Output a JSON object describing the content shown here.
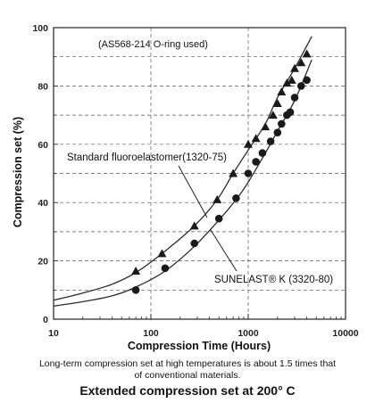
{
  "chart_data": {
    "type": "scatter",
    "title": "Extended compression set at 200° C",
    "note": "(AS568-214 O-ring used)",
    "xlabel": "Compression Time (Hours)",
    "ylabel": "Compression set (%)",
    "xscale": "log",
    "xlim": [
      10,
      10000
    ],
    "ylim": [
      0,
      100
    ],
    "x_ticks": [
      "10",
      "100",
      "1000",
      "10000"
    ],
    "y_ticks": [
      "0",
      "20",
      "40",
      "60",
      "80",
      "100"
    ],
    "grid": "dashed major and minor horizontal lines, dashed major vertical lines",
    "series": [
      {
        "name": "Standard fluoroelastomer(1320-75)",
        "marker": "triangle",
        "color": "#1a1a1a",
        "x": [
          70,
          130,
          280,
          480,
          700,
          1000,
          1200,
          1500,
          1800,
          2000,
          2200,
          2500,
          2800,
          3000,
          3500,
          4000
        ],
        "y": [
          16.5,
          22.5,
          32,
          41,
          50,
          60,
          62,
          66,
          70,
          74,
          78,
          81,
          82,
          86,
          88,
          91
        ]
      },
      {
        "name": "SUNELAST® K (3320-80)",
        "marker": "circle",
        "color": "#1a1a1a",
        "x": [
          70,
          140,
          280,
          500,
          750,
          1000,
          1200,
          1400,
          1700,
          2000,
          2200,
          2500,
          2700,
          3000,
          3500,
          4000
        ],
        "y": [
          10,
          17.5,
          26,
          34.5,
          41.5,
          50,
          54,
          57,
          61,
          64,
          67,
          70,
          71,
          76,
          80,
          82
        ]
      }
    ],
    "fit_curves": [
      {
        "series": "Standard fluoroelastomer(1320-75)",
        "x": [
          10,
          20,
          40,
          70,
          130,
          280,
          480,
          700,
          1000,
          1500,
          2000,
          3000,
          4500
        ],
        "y": [
          6.5,
          9,
          12,
          16,
          22.5,
          32,
          41,
          50,
          58,
          67,
          76,
          86,
          97
        ]
      },
      {
        "series": "SUNELAST® K (3320-80)",
        "x": [
          10,
          20,
          40,
          70,
          140,
          280,
          500,
          750,
          1000,
          1500,
          2000,
          3000,
          4500
        ],
        "y": [
          4.5,
          6,
          8,
          11,
          16.5,
          25,
          34,
          41,
          47,
          57,
          64.5,
          75,
          89
        ]
      }
    ],
    "annotations": {
      "standard_label": "Standard fluoroelastomer(1320-75)",
      "sunelast_label": "SUNELAST® K (3320-80)"
    },
    "caption_line": "Long-term compression set at high temperatures is about 1.5 times that of conventional materials."
  }
}
